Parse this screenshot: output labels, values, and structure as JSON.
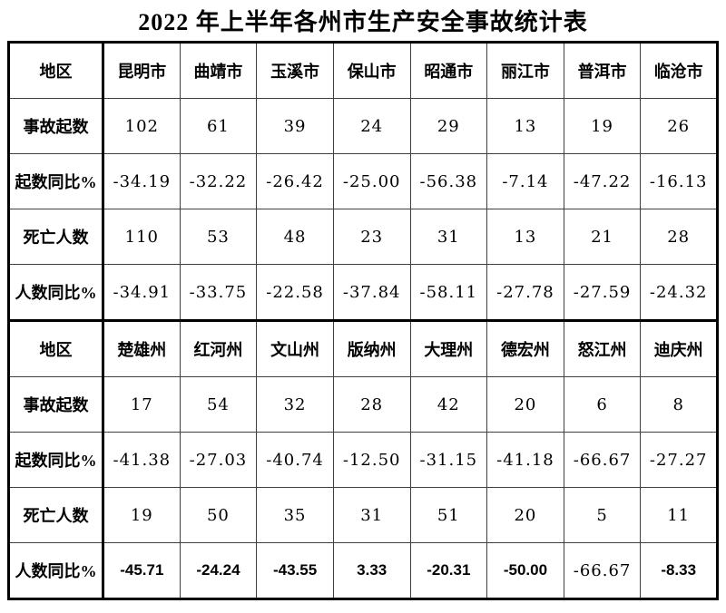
{
  "chart_data": {
    "type": "table",
    "title": "2022 年上半年各州市生产安全事故统计表",
    "row_labels": [
      "地区",
      "事故起数",
      "起数同比%",
      "死亡人数",
      "人数同比%"
    ],
    "sections": [
      {
        "regions": [
          "昆明市",
          "曲靖市",
          "玉溪市",
          "保山市",
          "昭通市",
          "丽江市",
          "普洱市",
          "临沧市"
        ],
        "accidents": [
          "102",
          "61",
          "39",
          "24",
          "29",
          "13",
          "19",
          "26"
        ],
        "accidents_yoy_pct": [
          "-34.19",
          "-32.22",
          "-26.42",
          "-25.00",
          "-56.38",
          "-7.14",
          "-47.22",
          "-16.13"
        ],
        "deaths": [
          "110",
          "53",
          "48",
          "23",
          "31",
          "13",
          "21",
          "28"
        ],
        "deaths_yoy_pct": [
          "-34.91",
          "-33.75",
          "-22.58",
          "-37.84",
          "-58.11",
          "-27.78",
          "-27.59",
          "-24.32"
        ]
      },
      {
        "regions": [
          "楚雄州",
          "红河州",
          "文山州",
          "版纳州",
          "大理州",
          "德宏州",
          "怒江州",
          "迪庆州"
        ],
        "accidents": [
          "17",
          "54",
          "32",
          "28",
          "42",
          "20",
          "6",
          "8"
        ],
        "accidents_yoy_pct": [
          "-41.38",
          "-27.03",
          "-40.74",
          "-12.50",
          "-31.15",
          "-41.18",
          "-66.67",
          "-27.27"
        ],
        "deaths": [
          "19",
          "50",
          "35",
          "31",
          "51",
          "20",
          "5",
          "11"
        ],
        "deaths_yoy_pct": [
          "-45.71",
          "-24.24",
          "-43.55",
          "3.33",
          "-20.31",
          "-50.00",
          "-66.67",
          "-8.33"
        ]
      }
    ],
    "colors": {
      "thick_border": "#000000",
      "thin_border": "#404040",
      "text": "#000000",
      "background": "#ffffff"
    }
  }
}
